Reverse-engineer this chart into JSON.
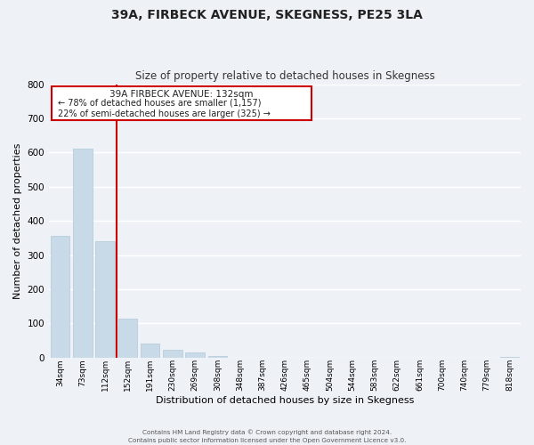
{
  "title": "39A, FIRBECK AVENUE, SKEGNESS, PE25 3LA",
  "subtitle": "Size of property relative to detached houses in Skegness",
  "xlabel": "Distribution of detached houses by size in Skegness",
  "ylabel": "Number of detached properties",
  "bar_color": "#c8d9e8",
  "bar_edge_color": "#b0c8d8",
  "background_color": "#eef2f7",
  "plot_bg_color": "#eef2f7",
  "grid_color": "#ffffff",
  "categories": [
    "34sqm",
    "73sqm",
    "112sqm",
    "152sqm",
    "191sqm",
    "230sqm",
    "269sqm",
    "308sqm",
    "348sqm",
    "387sqm",
    "426sqm",
    "465sqm",
    "504sqm",
    "544sqm",
    "583sqm",
    "622sqm",
    "661sqm",
    "700sqm",
    "740sqm",
    "779sqm",
    "818sqm"
  ],
  "values": [
    355,
    611,
    340,
    113,
    40,
    22,
    14,
    5,
    0,
    0,
    0,
    0,
    0,
    0,
    0,
    0,
    0,
    0,
    0,
    0,
    3
  ],
  "ylim": [
    0,
    800
  ],
  "yticks": [
    0,
    100,
    200,
    300,
    400,
    500,
    600,
    700,
    800
  ],
  "marker_color": "#cc0000",
  "annotation_title": "39A FIRBECK AVENUE: 132sqm",
  "annotation_line1": "← 78% of detached houses are smaller (1,157)",
  "annotation_line2": "22% of semi-detached houses are larger (325) →",
  "footer_line1": "Contains HM Land Registry data © Crown copyright and database right 2024.",
  "footer_line2": "Contains public sector information licensed under the Open Government Licence v3.0."
}
